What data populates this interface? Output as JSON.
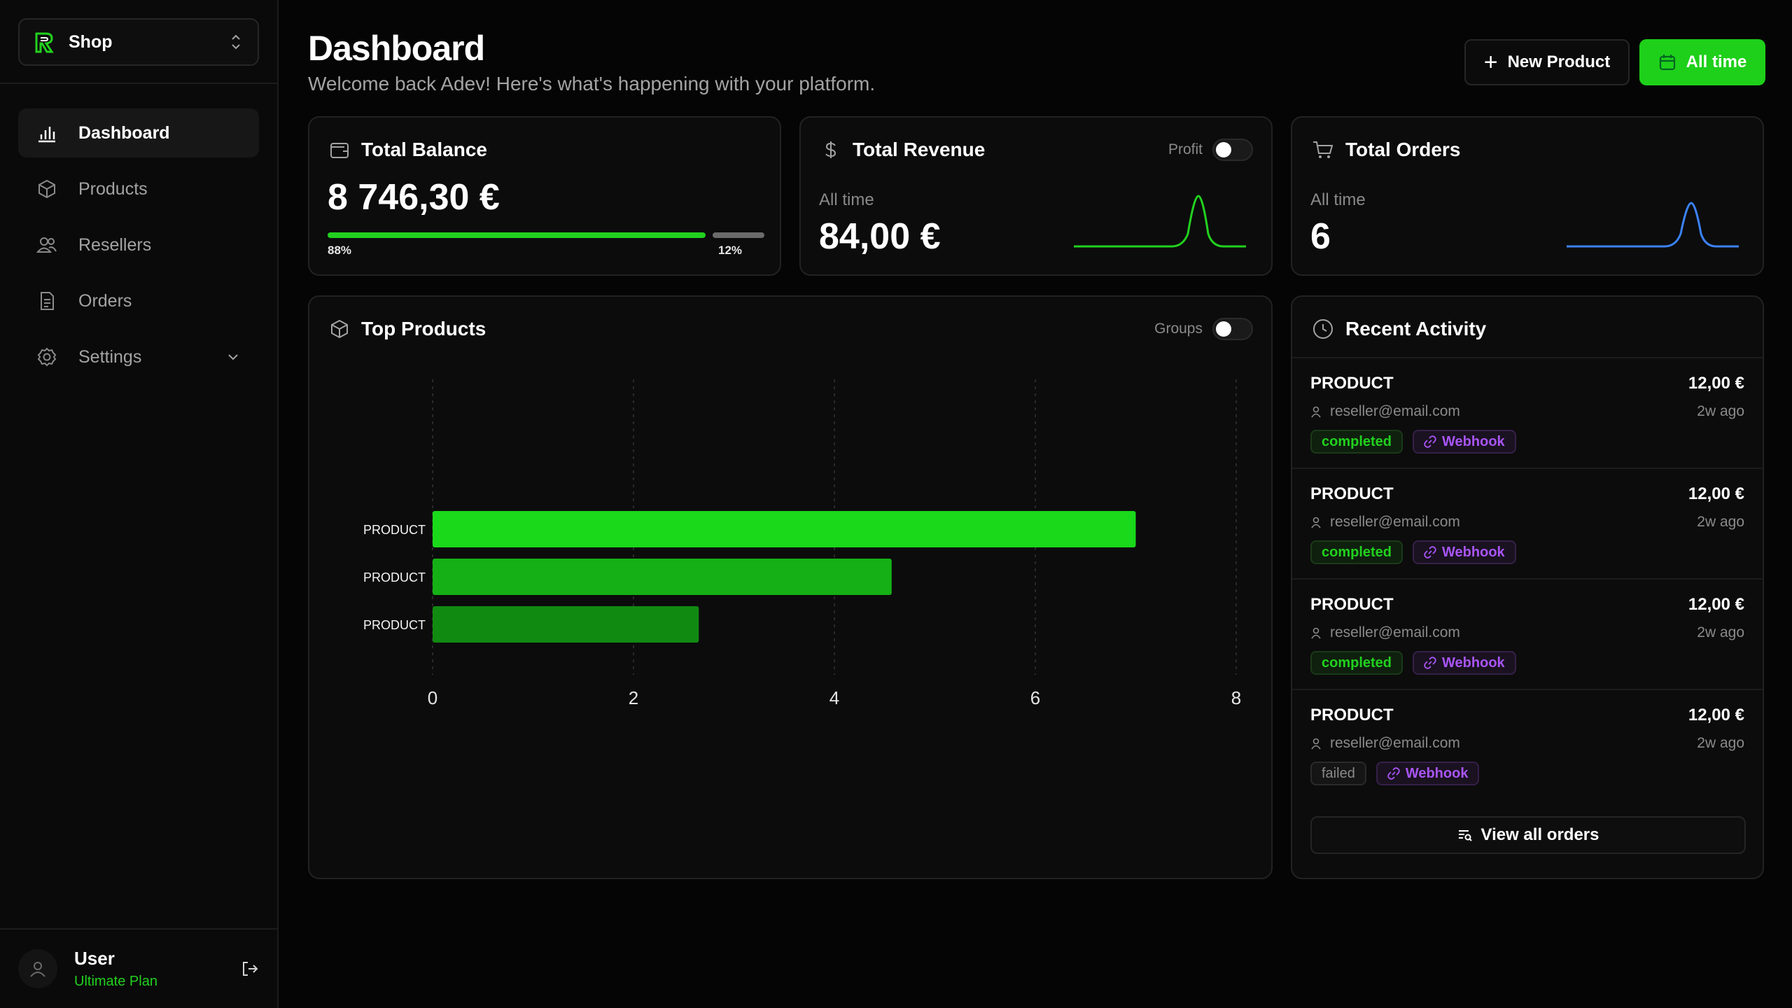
{
  "sidebar": {
    "shop_label": "Shop",
    "nav": [
      {
        "label": "Dashboard",
        "icon": "bar-chart-icon",
        "active": true
      },
      {
        "label": "Products",
        "icon": "box-icon"
      },
      {
        "label": "Resellers",
        "icon": "users-icon"
      },
      {
        "label": "Orders",
        "icon": "document-icon"
      },
      {
        "label": "Settings",
        "icon": "gear-icon"
      }
    ],
    "user": {
      "name": "User",
      "plan": "Ultimate Plan"
    }
  },
  "header": {
    "title": "Dashboard",
    "subtitle": "Welcome back Adev! Here's what's happening with your platform.",
    "new_product_label": "New Product",
    "time_range_label": "All time"
  },
  "balance_card": {
    "title": "Total Balance",
    "value": "8 746,30 €",
    "left_pct": "88%",
    "right_pct": "12%",
    "split": [
      0.88,
      0.12
    ]
  },
  "revenue_card": {
    "title": "Total Revenue",
    "toggle_label": "Profit",
    "period": "All time",
    "value": "84,00 €"
  },
  "orders_card": {
    "title": "Total Orders",
    "period": "All time",
    "value": "6"
  },
  "top_products": {
    "title": "Top Products",
    "toggle_label": "Groups"
  },
  "chart_data": {
    "type": "bar",
    "orientation": "horizontal",
    "categories": [
      "PRODUCT",
      "PRODUCT",
      "PRODUCT"
    ],
    "values": [
      7,
      4.57,
      2.65
    ],
    "xlim": [
      0,
      8
    ],
    "xticks": [
      0,
      2,
      4,
      6,
      8
    ],
    "grid": true,
    "colors": [
      "#1ad81a",
      "#15b015",
      "#118a11"
    ]
  },
  "recent_activity": {
    "title": "Recent Activity",
    "items": [
      {
        "name": "PRODUCT",
        "amount": "12,00 €",
        "email": "reseller@email.com",
        "time": "2w ago",
        "status": "completed",
        "webhook": "Webhook"
      },
      {
        "name": "PRODUCT",
        "amount": "12,00 €",
        "email": "reseller@email.com",
        "time": "2w ago",
        "status": "completed",
        "webhook": "Webhook"
      },
      {
        "name": "PRODUCT",
        "amount": "12,00 €",
        "email": "reseller@email.com",
        "time": "2w ago",
        "status": "completed",
        "webhook": "Webhook"
      },
      {
        "name": "PRODUCT",
        "amount": "12,00 €",
        "email": "reseller@email.com",
        "time": "2w ago",
        "status": "failed",
        "webhook": "Webhook"
      }
    ],
    "view_all_label": "View all orders"
  },
  "colors": {
    "accent": "#22d11f",
    "revenue_line": "#22d11f",
    "orders_line": "#3b82f6",
    "webhook": "#a855f7"
  }
}
